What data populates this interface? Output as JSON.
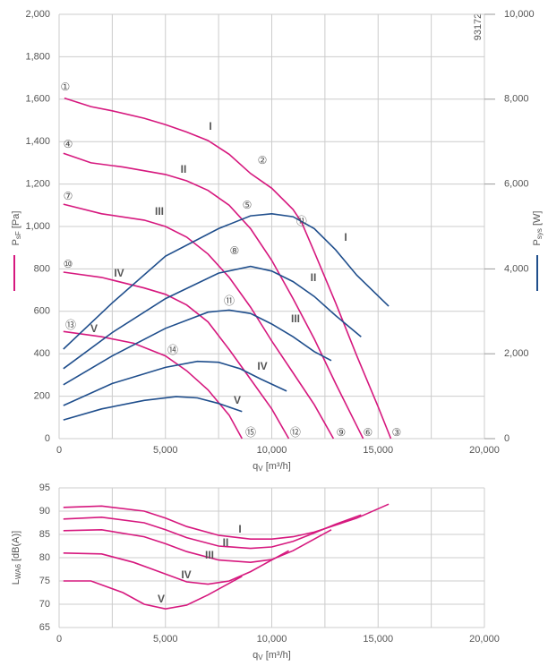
{
  "figure_id": "93172",
  "chart_data": [
    {
      "type": "line",
      "y_label": "P",
      "y_label_sub": "sF",
      "y_label_unit": " [Pa]",
      "y2_label": "P",
      "y2_label_sub": "sys",
      "y2_label_unit": " [W]",
      "x_label": "q",
      "x_label_sub": "V",
      "x_label_unit": " [m³/h]",
      "xlim": [
        0,
        20000
      ],
      "xticks": [
        0,
        {
          "value": 5000,
          "label": "5,000"
        },
        {
          "value": 10000,
          "label": "10,000"
        },
        {
          "value": 15000,
          "label": "15,000"
        },
        {
          "value": 20000,
          "label": "20,000"
        }
      ],
      "xminor": [
        2500,
        7500,
        12500,
        17500
      ],
      "ylim": [
        0,
        2000
      ],
      "yticks": [
        0,
        200,
        400,
        600,
        800,
        {
          "value": 1000,
          "label": "1,000"
        },
        {
          "value": 1200,
          "label": "1,200"
        },
        {
          "value": 1400,
          "label": "1,400"
        },
        {
          "value": 1600,
          "label": "1,600"
        },
        {
          "value": 1800,
          "label": "1,800"
        },
        {
          "value": 2000,
          "label": "2,000"
        }
      ],
      "y2lim": [
        0,
        10000
      ],
      "y2ticks": [
        0,
        {
          "value": 2000,
          "label": "2,000"
        },
        {
          "value": 4000,
          "label": "4,000"
        },
        {
          "value": 6000,
          "label": "6,000"
        },
        {
          "value": 8000,
          "label": "8,000"
        },
        {
          "value": 10000,
          "label": "10,000"
        }
      ],
      "grid": true,
      "series": [
        {
          "name": "I",
          "color": "#d6187e",
          "x": [
            250,
            1500,
            2500,
            4000,
            5000,
            6000,
            7000,
            8000,
            9000,
            10000,
            11000,
            11400,
            12000,
            13000,
            14000,
            15000,
            15600
          ],
          "values": [
            1605,
            1565,
            1545,
            1510,
            1480,
            1445,
            1405,
            1340,
            1250,
            1180,
            1080,
            1020,
            880,
            640,
            390,
            150,
            0
          ]
        },
        {
          "name": "II",
          "color": "#d6187e",
          "x": [
            200,
            1500,
            3000,
            5000,
            6000,
            7000,
            8000,
            9000,
            10000,
            11000,
            12000,
            13000,
            14000,
            14300
          ],
          "values": [
            1345,
            1300,
            1280,
            1245,
            1215,
            1170,
            1100,
            990,
            840,
            660,
            470,
            260,
            60,
            0
          ]
        },
        {
          "name": "III",
          "color": "#d6187e",
          "x": [
            200,
            2000,
            4000,
            5000,
            6000,
            7000,
            8000,
            9000,
            10000,
            11000,
            12000,
            12900
          ],
          "values": [
            1105,
            1060,
            1030,
            1000,
            950,
            870,
            760,
            620,
            460,
            310,
            160,
            0
          ]
        },
        {
          "name": "IV",
          "color": "#d6187e",
          "x": [
            200,
            2000,
            4000,
            5000,
            6000,
            7000,
            8000,
            9000,
            10000,
            10800
          ],
          "values": [
            785,
            760,
            710,
            680,
            630,
            550,
            420,
            280,
            140,
            0
          ]
        },
        {
          "name": "V",
          "color": "#d6187e",
          "x": [
            200,
            2000,
            3500,
            5000,
            6000,
            7000,
            8000,
            8600
          ],
          "values": [
            505,
            480,
            450,
            390,
            320,
            230,
            110,
            0
          ]
        },
        {
          "name": "I",
          "color": "#1f4e8c",
          "axis": "y2",
          "x": [
            200,
            2500,
            5000,
            7500,
            9000,
            10000,
            11000,
            12000,
            13000,
            14000,
            15500
          ],
          "values": [
            2110,
            3200,
            4300,
            4950,
            5250,
            5300,
            5230,
            4950,
            4450,
            3850,
            3120
          ]
        },
        {
          "name": "II",
          "color": "#1f4e8c",
          "axis": "y2",
          "x": [
            200,
            2500,
            5000,
            7500,
            9000,
            10000,
            11000,
            12000,
            13000,
            14200
          ],
          "values": [
            1650,
            2500,
            3300,
            3900,
            4060,
            3950,
            3700,
            3350,
            2900,
            2400
          ]
        },
        {
          "name": "III",
          "color": "#1f4e8c",
          "axis": "y2",
          "x": [
            200,
            2500,
            5000,
            7000,
            8000,
            9000,
            10000,
            11000,
            12000,
            12800
          ],
          "values": [
            1270,
            1950,
            2600,
            2980,
            3030,
            2950,
            2700,
            2400,
            2050,
            1840
          ]
        },
        {
          "name": "IV",
          "color": "#1f4e8c",
          "axis": "y2",
          "x": [
            200,
            2500,
            5000,
            6500,
            7500,
            8500,
            9500,
            10700
          ],
          "values": [
            780,
            1300,
            1680,
            1820,
            1800,
            1650,
            1400,
            1120
          ]
        },
        {
          "name": "V",
          "color": "#1f4e8c",
          "axis": "y2",
          "x": [
            200,
            2000,
            4000,
            5500,
            6500,
            7500,
            8600
          ],
          "values": [
            440,
            700,
            900,
            990,
            960,
            830,
            640
          ]
        }
      ],
      "annotations": [
        {
          "text": "①",
          "x": 290,
          "y": 1654,
          "color": "#d6187e"
        },
        {
          "text": "②",
          "x": 9560,
          "y": 1308,
          "color": "#d6187e"
        },
        {
          "text": "③",
          "x": 15870,
          "y": 25,
          "color": "#d6187e"
        },
        {
          "text": "④",
          "x": 420,
          "y": 1384,
          "color": "#d6187e"
        },
        {
          "text": "⑤",
          "x": 8840,
          "y": 1097,
          "color": "#d6187e"
        },
        {
          "text": "⑥",
          "x": 14520,
          "y": 25,
          "color": "#d6187e"
        },
        {
          "text": "⑦",
          "x": 420,
          "y": 1139,
          "color": "#d6187e"
        },
        {
          "text": "⑧",
          "x": 8250,
          "y": 882,
          "color": "#d6187e"
        },
        {
          "text": "⑨",
          "x": 13260,
          "y": 25,
          "color": "#d6187e"
        },
        {
          "text": "⑩",
          "x": 420,
          "y": 819,
          "color": "#d6187e"
        },
        {
          "text": "⑪",
          "x": 8000,
          "y": 646,
          "color": "#d6187e"
        },
        {
          "text": "⑫",
          "x": 11110,
          "y": 25,
          "color": "#d6187e"
        },
        {
          "text": "⑬",
          "x": 550,
          "y": 532,
          "color": "#d6187e"
        },
        {
          "text": "⑭",
          "x": 5350,
          "y": 414,
          "color": "#d6187e"
        },
        {
          "text": "⑮",
          "x": 9010,
          "y": 25,
          "color": "#d6187e"
        },
        {
          "text": "⑪",
          "x": 11400,
          "y": 1021,
          "color": "#222"
        }
      ]
    },
    {
      "type": "line",
      "y_label": "L",
      "y_label_sub": "WA6",
      "y_label_unit": " [dB(A)]",
      "x_label": "q",
      "x_label_sub": "V",
      "x_label_unit": " [m³/h]",
      "xlim": [
        0,
        20000
      ],
      "xticks": [
        0,
        {
          "value": 5000,
          "label": "5,000"
        },
        {
          "value": 10000,
          "label": "10,000"
        },
        {
          "value": 15000,
          "label": "15,000"
        },
        {
          "value": 20000,
          "label": "20,000"
        }
      ],
      "xminor": [
        2500,
        7500,
        12500,
        17500
      ],
      "ylim": [
        65,
        95
      ],
      "yticks": [
        65,
        70,
        75,
        80,
        85,
        90,
        95
      ],
      "grid": true,
      "series": [
        {
          "name": "I",
          "color": "#d6187e",
          "x": [
            200,
            2000,
            4000,
            5000,
            6000,
            7500,
            9000,
            10000,
            11000,
            12000,
            13000,
            14000,
            15500
          ],
          "values": [
            90.8,
            91.1,
            90,
            88.5,
            86.7,
            84.8,
            84,
            84,
            84.5,
            85.5,
            87,
            88.5,
            91.5
          ]
        },
        {
          "name": "II",
          "color": "#d6187e",
          "x": [
            200,
            2000,
            4000,
            5000,
            6000,
            7500,
            9000,
            10000,
            11000,
            12000,
            13000,
            14200
          ],
          "values": [
            88.3,
            88.7,
            87.5,
            86,
            84.3,
            82.5,
            82,
            82.3,
            83.5,
            85.3,
            87.2,
            89.2
          ]
        },
        {
          "name": "III",
          "color": "#d6187e",
          "x": [
            200,
            2000,
            4000,
            5000,
            6000,
            7500,
            9000,
            10000,
            11000,
            12000,
            12800
          ],
          "values": [
            85.8,
            86,
            84.5,
            83,
            81.3,
            79.5,
            79,
            79.6,
            81.5,
            84,
            86
          ]
        },
        {
          "name": "IV",
          "color": "#d6187e",
          "x": [
            200,
            2000,
            3500,
            5000,
            6000,
            7000,
            8000,
            9000,
            10000,
            10800
          ],
          "values": [
            81,
            80.8,
            79,
            76.5,
            74.8,
            74.3,
            75,
            77,
            79.5,
            81.5
          ]
        },
        {
          "name": "V",
          "color": "#d6187e",
          "x": [
            200,
            1500,
            3000,
            4000,
            5000,
            6000,
            7000,
            8000,
            8600
          ],
          "values": [
            75,
            75,
            72.5,
            70,
            69,
            69.8,
            72,
            74.5,
            76
          ]
        }
      ]
    }
  ]
}
